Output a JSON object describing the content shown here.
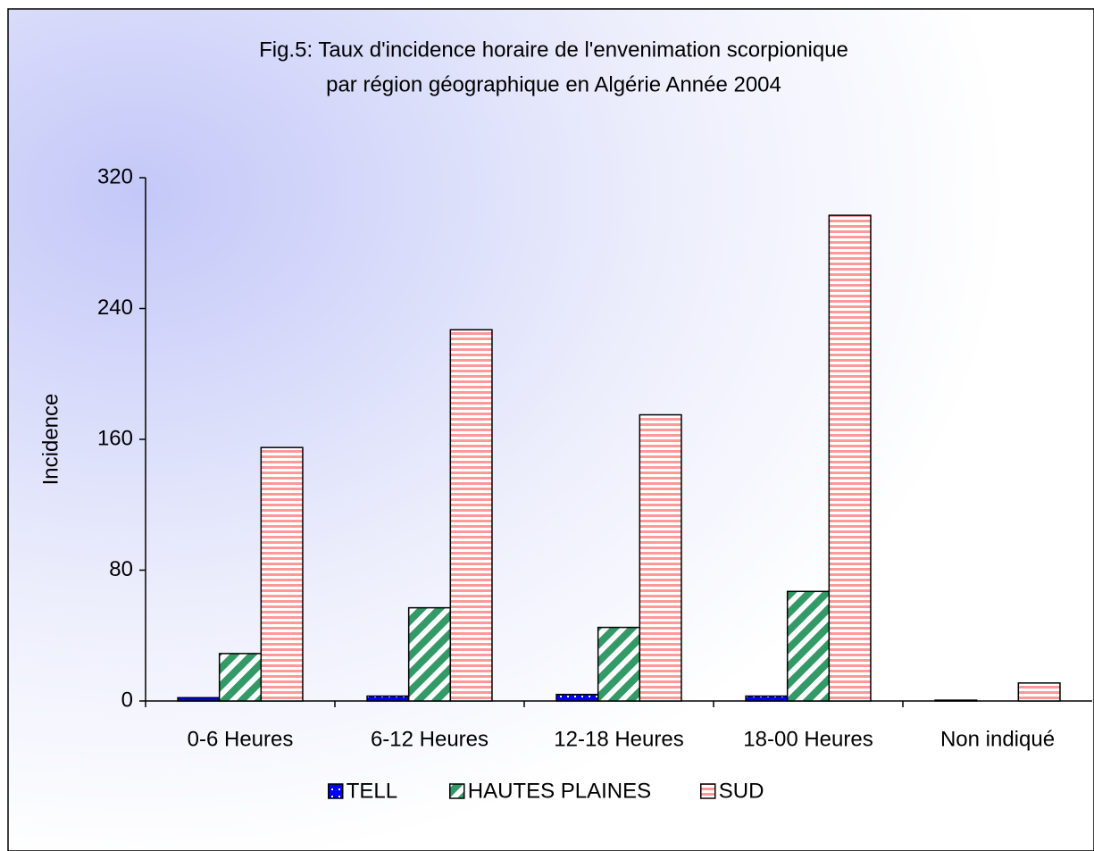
{
  "chart_data": {
    "type": "bar",
    "title": [
      "Fig.5: Taux d'incidence horaire de l'envenimation scorpionique",
      "par région géographique en Algérie   Année 2004"
    ],
    "ylabel": "Incidence",
    "categories": [
      "0-6 Heures",
      "6-12 Heures",
      "12-18 Heures",
      "18-00 Heures",
      "Non indiqué"
    ],
    "series": [
      {
        "name": "TELL",
        "color": "#0000ff",
        "pattern": "dots",
        "values": [
          2,
          3,
          4,
          3,
          0.5
        ]
      },
      {
        "name": "HAUTES PLAINES",
        "color": "#339966",
        "pattern": "diagonal",
        "values": [
          29,
          57,
          45,
          67,
          0
        ]
      },
      {
        "name": "SUD",
        "color": "#ff9999",
        "pattern": "horizontal",
        "values": [
          155,
          227,
          175,
          297,
          11
        ]
      }
    ],
    "ylim": [
      0,
      320
    ],
    "yticks": [
      0,
      80,
      160,
      240,
      320
    ],
    "grid": false,
    "legend": "bottom"
  }
}
